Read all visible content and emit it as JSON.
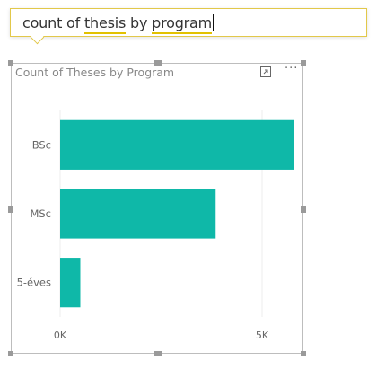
{
  "qa": {
    "before": "count of ",
    "word1": "thesis",
    "middle": " by ",
    "word2": "program"
  },
  "visual": {
    "title": "Count of Theses by Program",
    "focus_icon": "focus-mode-icon",
    "more_icon": "more-options-icon"
  },
  "chart_data": {
    "type": "bar",
    "orientation": "horizontal",
    "title": "Count of Theses by Program",
    "categories": [
      "BSc",
      "MSc",
      "5-éves"
    ],
    "values": [
      5800,
      3850,
      500
    ],
    "xlim": [
      0,
      6000
    ],
    "xticks": [
      0,
      5000
    ],
    "xtick_labels": [
      "0K",
      "5K"
    ],
    "grid": true,
    "colors": {
      "bar": "#0fb8a8"
    }
  }
}
